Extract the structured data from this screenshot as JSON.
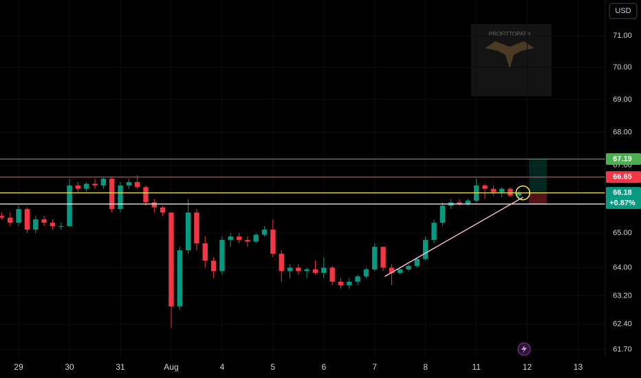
{
  "chart_data": {
    "type": "candlestick",
    "currency": "USD",
    "watermark": "PROFITTOPATH",
    "log_scale": true,
    "ylim": [
      61.48,
      72.15
    ],
    "yticks": [
      {
        "value": 71,
        "label": "71.00"
      },
      {
        "value": 70,
        "label": "70.00"
      },
      {
        "value": 69,
        "label": "69.00"
      },
      {
        "value": 68,
        "label": "68.00"
      },
      {
        "value": 67,
        "label": "67.00"
      },
      {
        "value": 65,
        "label": "65.00"
      },
      {
        "value": 64,
        "label": "64.00"
      },
      {
        "value": 63.2,
        "label": "63.20"
      },
      {
        "value": 62.4,
        "label": "62.40"
      },
      {
        "value": 61.7,
        "label": "61.70"
      }
    ],
    "xlim": [
      -2.2,
      69.2
    ],
    "xticks": [
      {
        "value": 0,
        "label": "29"
      },
      {
        "value": 6,
        "label": "30"
      },
      {
        "value": 12,
        "label": "31"
      },
      {
        "value": 18,
        "label": "Aug"
      },
      {
        "value": 24,
        "label": "4"
      },
      {
        "value": 30,
        "label": "5"
      },
      {
        "value": 36,
        "label": "6"
      },
      {
        "value": 42,
        "label": "7"
      },
      {
        "value": 48,
        "label": "8"
      },
      {
        "value": 54,
        "label": "11"
      },
      {
        "value": 60,
        "label": "12"
      },
      {
        "value": 66,
        "label": "13"
      }
    ],
    "up_color": "#089981",
    "down_color": "#f23645",
    "x": [
      -2,
      -1,
      0,
      1,
      2,
      3,
      4,
      5,
      6,
      7,
      8,
      9,
      10,
      11,
      12,
      13,
      14,
      15,
      16,
      17,
      18,
      19,
      20,
      21,
      22,
      23,
      24,
      25,
      26,
      27,
      28,
      29,
      30,
      31,
      32,
      33,
      34,
      35,
      36,
      37,
      38,
      39,
      40,
      41,
      42,
      43,
      44,
      45,
      46,
      47,
      48,
      49,
      50,
      51,
      52,
      53,
      54,
      55,
      56,
      57,
      58,
      59
    ],
    "open": [
      65.5,
      65.45,
      65.3,
      65.7,
      65.1,
      65.4,
      65.3,
      65.2,
      65.2,
      66.4,
      66.3,
      66.45,
      66.4,
      66.6,
      65.7,
      66.4,
      66.5,
      66.35,
      65.9,
      65.75,
      65.6,
      62.9,
      64.5,
      65.6,
      64.7,
      64.2,
      63.9,
      64.8,
      64.9,
      64.8,
      64.75,
      64.95,
      65.1,
      64.4,
      63.9,
      64.0,
      63.9,
      63.95,
      63.85,
      64.0,
      63.6,
      63.5,
      63.6,
      63.75,
      63.95,
      64.6,
      64.0,
      63.85,
      63.95,
      64.05,
      64.25,
      64.8,
      65.3,
      65.8,
      65.9,
      65.85,
      65.95,
      66.4,
      66.3,
      66.2,
      66.3,
      66.1
    ],
    "high": [
      65.6,
      65.6,
      65.8,
      65.75,
      65.5,
      65.5,
      65.4,
      65.3,
      66.6,
      66.5,
      66.5,
      66.6,
      66.65,
      66.65,
      66.5,
      66.6,
      66.7,
      66.4,
      66.0,
      65.8,
      65.6,
      64.6,
      66.0,
      65.7,
      64.9,
      64.3,
      64.9,
      65.0,
      65.0,
      64.9,
      65.0,
      65.2,
      65.4,
      64.5,
      64.1,
      64.1,
      64.0,
      64.2,
      64.3,
      64.05,
      63.7,
      63.7,
      63.8,
      64.0,
      64.7,
      64.6,
      64.1,
      64.0,
      64.1,
      64.3,
      64.9,
      65.4,
      65.9,
      66.0,
      66.0,
      66.0,
      66.6,
      66.45,
      66.4,
      66.35,
      66.35,
      66.25
    ],
    "low": [
      65.4,
      65.2,
      65.2,
      65.0,
      65.0,
      65.2,
      65.1,
      65.1,
      65.2,
      66.2,
      66.2,
      66.3,
      66.3,
      65.6,
      65.6,
      66.3,
      66.3,
      65.8,
      65.6,
      65.5,
      62.3,
      62.8,
      64.4,
      64.5,
      64.0,
      63.7,
      63.8,
      64.6,
      64.7,
      64.6,
      64.7,
      64.9,
      64.3,
      63.6,
      63.7,
      63.8,
      63.7,
      63.8,
      63.7,
      63.5,
      63.4,
      63.4,
      63.5,
      63.7,
      63.9,
      63.9,
      63.5,
      63.8,
      63.9,
      64.0,
      64.2,
      64.7,
      65.2,
      65.7,
      65.8,
      65.8,
      65.9,
      66.0,
      66.1,
      66.05,
      66.05,
      66.0
    ],
    "close": [
      65.45,
      65.3,
      65.7,
      65.1,
      65.4,
      65.3,
      65.2,
      65.2,
      66.4,
      66.3,
      66.45,
      66.4,
      66.6,
      65.7,
      66.4,
      66.5,
      66.35,
      65.9,
      65.75,
      65.6,
      62.9,
      64.5,
      65.6,
      64.7,
      64.2,
      63.9,
      64.8,
      64.9,
      64.8,
      64.75,
      64.95,
      65.1,
      64.4,
      63.9,
      64.0,
      63.9,
      63.95,
      63.85,
      64.0,
      63.6,
      63.5,
      63.6,
      63.75,
      63.95,
      64.6,
      64.0,
      63.85,
      63.95,
      64.05,
      64.25,
      64.8,
      65.3,
      65.8,
      65.9,
      65.85,
      65.95,
      66.4,
      66.3,
      66.2,
      66.3,
      66.1,
      66.18
    ],
    "levels": [
      {
        "value": 67.19,
        "color": "#4caf50",
        "tag": true
      },
      {
        "value": 66.65,
        "color": "#f23645",
        "tag": true
      },
      {
        "value": 66.18,
        "color": "#f5e663",
        "tag": true
      },
      {
        "value": 65.85,
        "color": "#ffffff",
        "tag": false
      }
    ],
    "change": "+0.87%",
    "last_tag_color": "#089981",
    "trendline": {
      "x": [
        43.2,
        59.5
      ],
      "y": [
        63.75,
        66.05
      ],
      "color": "#f8bbd0"
    },
    "position": {
      "x": [
        60.2,
        62.3
      ],
      "profit_color": "rgba(8,153,129,0.25)",
      "loss_color": "rgba(242,54,69,0.35)"
    }
  }
}
